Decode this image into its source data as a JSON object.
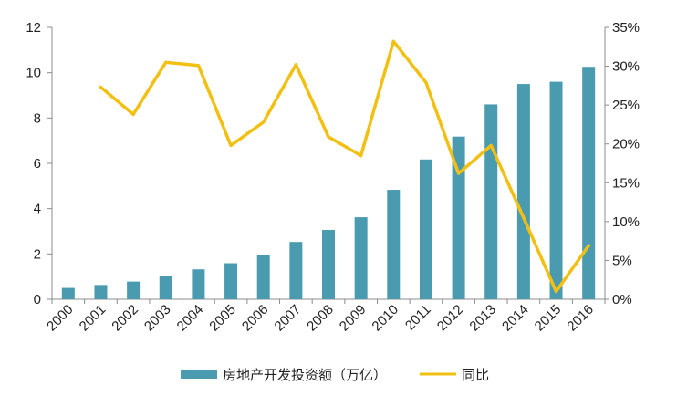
{
  "chart_data": {
    "type": "bar",
    "categories": [
      "2000",
      "2001",
      "2002",
      "2003",
      "2004",
      "2005",
      "2006",
      "2007",
      "2008",
      "2009",
      "2010",
      "2011",
      "2012",
      "2013",
      "2014",
      "2015",
      "2016"
    ],
    "series": [
      {
        "name": "房地产开发投资额（万亿）",
        "type": "bar",
        "axis": "left",
        "color": "#4a9bb0",
        "values": [
          0.5,
          0.63,
          0.78,
          1.02,
          1.32,
          1.59,
          1.94,
          2.53,
          3.06,
          3.62,
          4.83,
          6.17,
          7.18,
          8.6,
          9.5,
          9.6,
          10.26
        ]
      },
      {
        "name": "同比",
        "type": "line",
        "axis": "right",
        "color": "#f2c012",
        "values": [
          null,
          27.3,
          23.8,
          30.5,
          30.1,
          19.8,
          22.8,
          30.2,
          20.9,
          18.5,
          33.2,
          27.9,
          16.2,
          19.8,
          10.5,
          1.0,
          6.9
        ]
      }
    ],
    "ylim": [
      0,
      12
    ],
    "y_ticks": [
      "0",
      "2",
      "4",
      "6",
      "8",
      "10",
      "12"
    ],
    "y2lim": [
      0,
      35
    ],
    "y2_ticks": [
      "0%",
      "5%",
      "10%",
      "15%",
      "20%",
      "25%",
      "30%",
      "35%"
    ],
    "title": "",
    "xlabel": "",
    "ylabel": "",
    "grid": false,
    "legend_position": "bottom"
  }
}
